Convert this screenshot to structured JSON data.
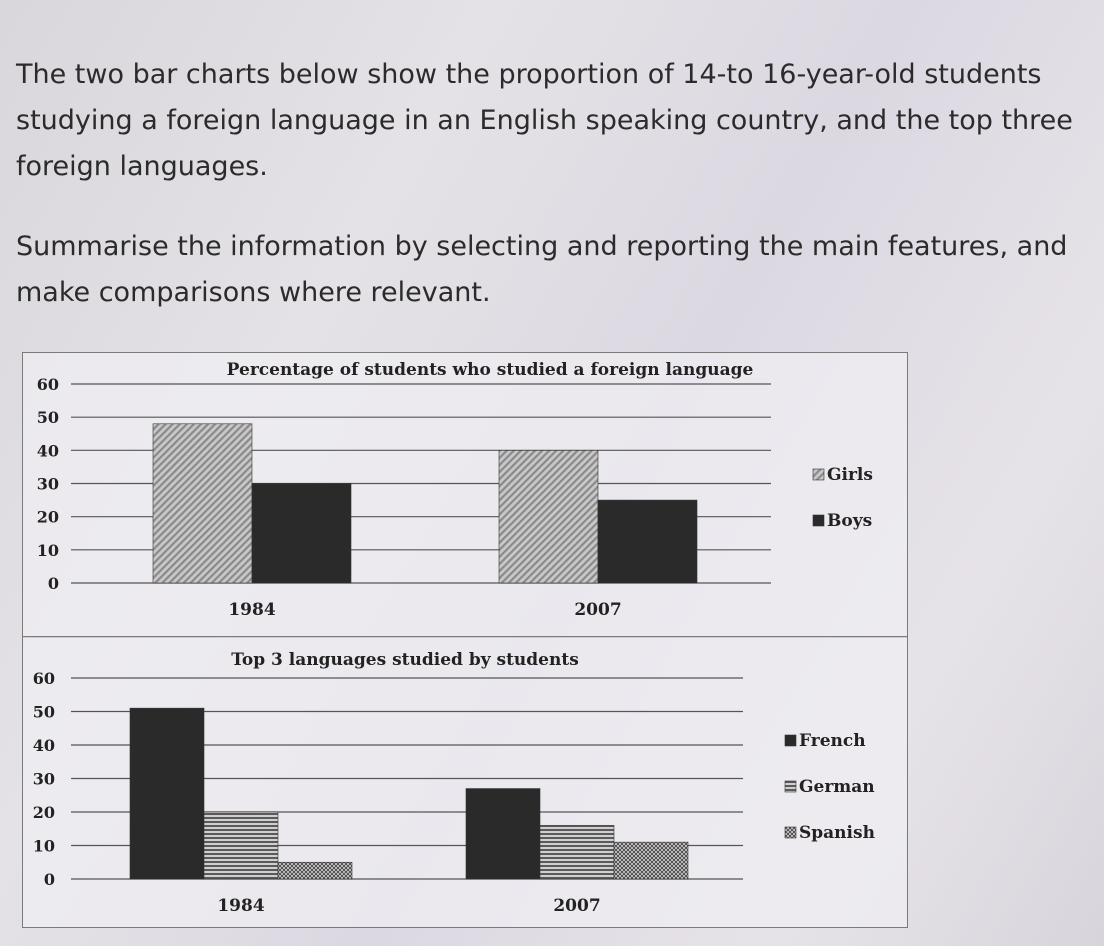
{
  "prompt": {
    "paragraph1": "The two bar charts below show the proportion of 14-to 16-year-old students studying a foreign language in an English speaking country, and the top three foreign languages.",
    "paragraph2": "Summarise the information by selecting and reporting the main features, and make comparisons where relevant."
  },
  "colors": {
    "dark_bar": "#2a2a2a",
    "stripe_bar": "#5a5a5a",
    "hatch_bar": "#8a8a8a",
    "gridline": "#555555"
  },
  "chart_data": [
    {
      "type": "bar",
      "title": "Percentage of students who studied a foreign language",
      "categories": [
        "1984",
        "2007"
      ],
      "series": [
        {
          "name": "Girls",
          "values": [
            48,
            40
          ]
        },
        {
          "name": "Boys",
          "values": [
            30,
            25
          ]
        }
      ],
      "y_ticks": [
        "0",
        "10",
        "20",
        "30",
        "40",
        "50",
        "60"
      ],
      "ylim": [
        0,
        60
      ],
      "xlabel": "",
      "ylabel": "",
      "grid": true,
      "legend": "right"
    },
    {
      "type": "bar",
      "title": "Top 3 languages studied by students",
      "categories": [
        "1984",
        "2007"
      ],
      "series": [
        {
          "name": "French",
          "values": [
            51,
            27
          ]
        },
        {
          "name": "German",
          "values": [
            20,
            16
          ]
        },
        {
          "name": "Spanish",
          "values": [
            5,
            11
          ]
        }
      ],
      "y_ticks": [
        "0",
        "10",
        "20",
        "30",
        "40",
        "50",
        "60"
      ],
      "ylim": [
        0,
        60
      ],
      "xlabel": "",
      "ylabel": "",
      "grid": true,
      "legend": "right"
    }
  ]
}
